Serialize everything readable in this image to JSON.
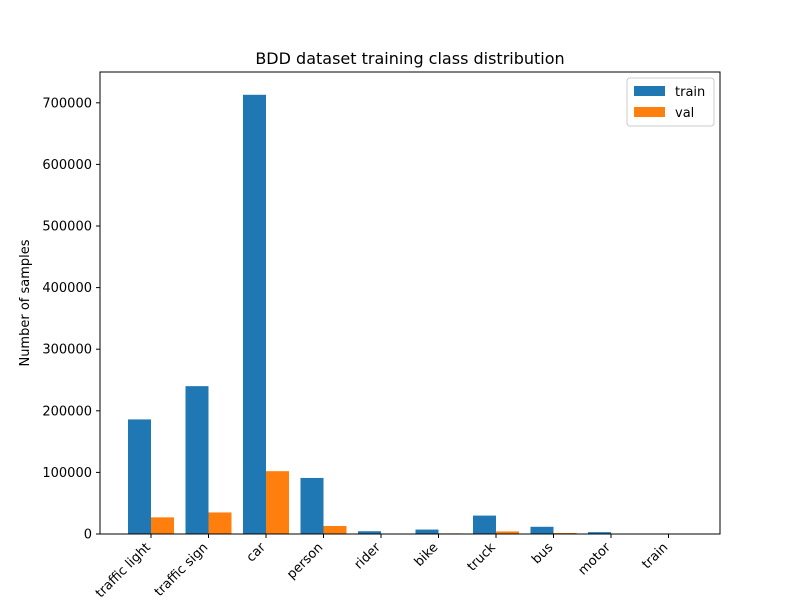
{
  "chart_data": {
    "type": "bar",
    "title": "BDD dataset training class distribution",
    "xlabel": "",
    "ylabel": "Number of samples",
    "categories": [
      "traffic light",
      "traffic sign",
      "car",
      "person",
      "rider",
      "bike",
      "truck",
      "bus",
      "motor",
      "train"
    ],
    "series": [
      {
        "name": "train",
        "color": "#1f77b4",
        "values": [
          186000,
          240000,
          713000,
          91000,
          4500,
          7200,
          29900,
          11700,
          3000,
          140
        ]
      },
      {
        "name": "val",
        "color": "#ff7f0e",
        "values": [
          27000,
          35000,
          102000,
          13000,
          650,
          1000,
          4200,
          1600,
          450,
          15
        ]
      }
    ],
    "ylim": [
      0,
      750000
    ],
    "yticks": [
      0,
      100000,
      200000,
      300000,
      400000,
      500000,
      600000,
      700000
    ],
    "ytick_labels": [
      "0",
      "100000",
      "200000",
      "300000",
      "400000",
      "500000",
      "600000",
      "700000"
    ],
    "legend_position": "top-right",
    "grid": false
  }
}
